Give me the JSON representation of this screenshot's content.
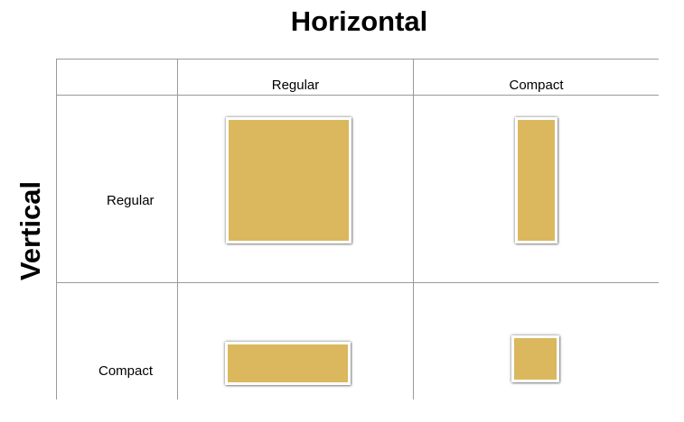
{
  "diagram": {
    "horizontal_title": "Horizontal",
    "vertical_title": "Vertical",
    "columns": [
      {
        "label": "Regular"
      },
      {
        "label": "Compact"
      }
    ],
    "rows": [
      {
        "label": "Regular"
      },
      {
        "label": "Compact"
      }
    ],
    "cells": [
      {
        "row": "Regular",
        "column": "Regular",
        "shape": "large square"
      },
      {
        "row": "Regular",
        "column": "Compact",
        "shape": "tall narrow rectangle"
      },
      {
        "row": "Compact",
        "column": "Regular",
        "shape": "wide short rectangle"
      },
      {
        "row": "Compact",
        "column": "Compact",
        "shape": "small square"
      }
    ],
    "colors": {
      "swatch_fill": "#dbb85e",
      "swatch_border": "#ffffff",
      "grid_lines": "#9a9a9a"
    }
  }
}
